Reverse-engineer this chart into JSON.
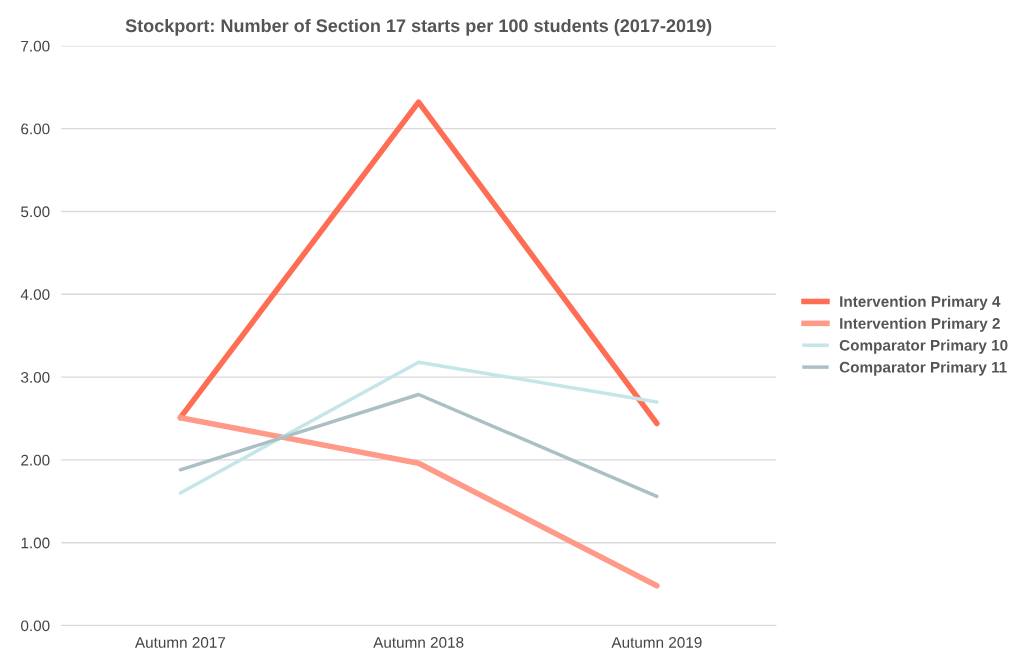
{
  "chart_data": {
    "type": "line",
    "title": "Stockport: Number of Section 17 starts per 100 students (2017-2019)",
    "categories": [
      "Autumn 2017",
      "Autumn 2018",
      "Autumn 2019"
    ],
    "series": [
      {
        "name": "Intervention Primary 4",
        "color": "#ff6e54",
        "values": [
          2.51,
          6.32,
          2.44
        ]
      },
      {
        "name": "Intervention Primary 2",
        "color": "#ff9a88",
        "values": [
          2.51,
          1.96,
          0.48
        ]
      },
      {
        "name": "Comparator Primary 10",
        "color": "#c5e6e8",
        "values": [
          1.6,
          3.18,
          2.7
        ]
      },
      {
        "name": "Comparator Primary 11",
        "color": "#abc0c5",
        "values": [
          1.88,
          2.79,
          1.56
        ]
      }
    ],
    "ylim": [
      0,
      7
    ],
    "yticks": [
      {
        "value": 0,
        "label": "0.00"
      },
      {
        "value": 1,
        "label": "1.00"
      },
      {
        "value": 2,
        "label": "2.00"
      },
      {
        "value": 3,
        "label": "3.00"
      },
      {
        "value": 4,
        "label": "4.00"
      },
      {
        "value": 5,
        "label": "5.00"
      },
      {
        "value": 6,
        "label": "6.00"
      },
      {
        "value": 7,
        "label": "7.00"
      }
    ],
    "grid": "y",
    "legend": "right",
    "marker": "none",
    "line_style": "solid"
  }
}
